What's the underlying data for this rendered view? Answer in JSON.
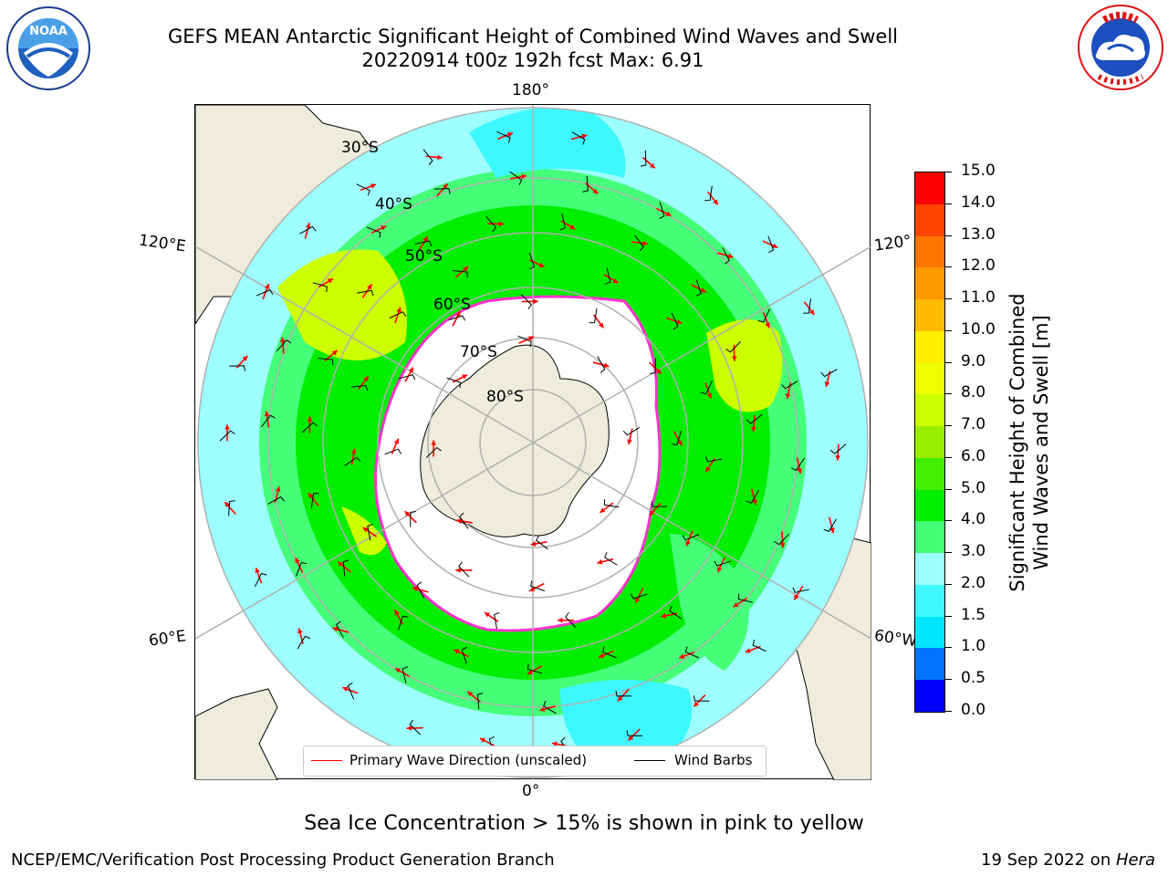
{
  "header": {
    "title_line1": "GEFS MEAN Antarctic Significant Height of Combined Wind Waves and Swell",
    "title_line2": "20220914 t00z 192h fcst   Max: 6.91"
  },
  "logos": {
    "left": "NOAA",
    "right": "NATIONAL WEATHER SERVICE"
  },
  "map": {
    "projection": "south polar stereographic",
    "lon_labels": {
      "top": "180°",
      "bottom": "0°",
      "left_upper": "120°E",
      "left_lower": "60°E",
      "right_upper": "120°",
      "right_lower": "60°W"
    },
    "lat_labels": [
      "30°S",
      "40°S",
      "50°S",
      "60°S",
      "70°S",
      "80°S"
    ],
    "legend": {
      "wave": "Primary Wave Direction (unscaled)",
      "barb": "Wind Barbs"
    },
    "colors": {
      "land": "#eeecdc",
      "ice": "#ffffff",
      "ice_edge": "#ff33cc",
      "arrow": "#ff0000",
      "barb": "#000000"
    }
  },
  "colorbar": {
    "label_line1": "Significant Height of Combined",
    "label_line2": "Wind Waves and Swell [m]",
    "ticks": [
      "15.0",
      "14.0",
      "13.0",
      "12.0",
      "11.0",
      "10.0",
      "9.0",
      "8.0",
      "7.0",
      "6.0",
      "5.0",
      "4.0",
      "3.0",
      "2.0",
      "1.5",
      "1.0",
      "0.5",
      "0.0"
    ],
    "colors": [
      "#0000ff",
      "#0073ff",
      "#00e6ff",
      "#3df9ff",
      "#9dffff",
      "#44ff77",
      "#00ee00",
      "#44ee00",
      "#99ee00",
      "#ccff00",
      "#eeff00",
      "#ffee00",
      "#ffbb00",
      "#ff9900",
      "#ff7700",
      "#ff4400",
      "#ff0000"
    ]
  },
  "captions": {
    "ice_note": "Sea Ice Concentration > 15% is shown in pink to yellow",
    "credit": "NCEP/EMC/Verification Post Processing Product Generation Branch",
    "date_prefix": "19 Sep 2022 on ",
    "date_machine": "Hera"
  }
}
